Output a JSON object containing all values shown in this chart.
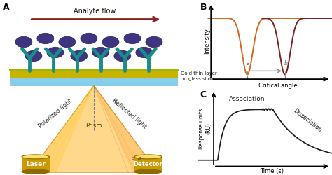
{
  "panel_A_label": "A",
  "panel_B_label": "B",
  "panel_C_label": "C",
  "analyte_flow_text": "Analyte flow",
  "gold_layer_text": "Gold thin layer\non glass slide",
  "polarized_light_text": "Polarized light",
  "reflected_light_text": "Reflected light",
  "prism_text": "Prism",
  "laser_text": "Laser",
  "detector_text": "Detector",
  "panel_B_xlabel": "Critical angle",
  "panel_B_ylabel": "Intensity",
  "panel_C_xlabel": "Time (s)",
  "panel_C_ylabel": "Response units\n(RU)",
  "association_text": "Association",
  "dissociation_text": "Dissociation",
  "analyte_flow_arrow_color": "#8B2020",
  "curve_a_color": "#D2691E",
  "curve_b_color": "#7B2020",
  "sensorgram_color": "#1a1a1a",
  "background_color": "#ffffff",
  "gold_color": "#C8B400",
  "glass_color": "#87CEEB",
  "antibody_color": "#1A8B8B",
  "analyte_color": "#3D3580",
  "laser_body_color": "#CC9900",
  "laser_dark_color": "#8B6A00",
  "prism_color": "#FFCC66",
  "beam_left_color": "#FFE066",
  "beam_right_color": "#FFCC99"
}
